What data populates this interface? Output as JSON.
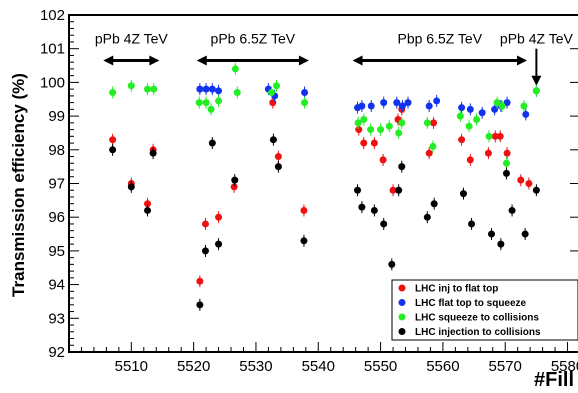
{
  "chart_data": {
    "type": "scatter",
    "xlabel": "#Fill",
    "ylabel": "Transmission efficiency (%)",
    "xlim": [
      5500,
      5582
    ],
    "ylim": [
      92,
      102
    ],
    "x_ticks": [
      5510,
      5520,
      5530,
      5540,
      5550,
      5560,
      5570,
      5580
    ],
    "y_ticks": [
      92,
      93,
      94,
      95,
      96,
      97,
      98,
      99,
      100,
      101,
      102
    ],
    "grid": false,
    "legend_position": "bottom-right",
    "period_annotations": [
      {
        "label": "pPb 4Z TeV",
        "x_start": 5505.5,
        "x_end": 5514.5
      },
      {
        "label": "pPb 6.5Z TeV",
        "x_start": 5520.5,
        "x_end": 5538.5
      },
      {
        "label": "Pbp 6.5Z TeV",
        "x_start": 5545.5,
        "x_end": 5573.5
      },
      {
        "label": "pPb 4Z TeV",
        "arrow_x": 5575,
        "arrow_y_from": 101.0,
        "arrow_y_to": 99.9
      }
    ],
    "series": [
      {
        "name": "LHC inj to flat top",
        "color": "#ee1111",
        "points": [
          [
            5507,
            98.3
          ],
          [
            5510,
            97.0
          ],
          [
            5512.6,
            96.4
          ],
          [
            5513.5,
            98.0
          ],
          [
            5521,
            94.1
          ],
          [
            5521.9,
            95.8
          ],
          [
            5524,
            96.0
          ],
          [
            5526.5,
            96.9
          ],
          [
            5532.7,
            99.4
          ],
          [
            5533.6,
            97.8
          ],
          [
            5537.7,
            96.2
          ],
          [
            5546.5,
            98.6
          ],
          [
            5547.3,
            98.2
          ],
          [
            5549,
            98.2
          ],
          [
            5550.4,
            97.7
          ],
          [
            5552,
            96.8
          ],
          [
            5552.8,
            98.9
          ],
          [
            5553.4,
            99.2
          ],
          [
            5557.8,
            97.9
          ],
          [
            5558.5,
            98.8
          ],
          [
            5563,
            98.3
          ],
          [
            5564.4,
            97.7
          ],
          [
            5567.3,
            97.9
          ],
          [
            5568.4,
            98.4
          ],
          [
            5569.2,
            98.4
          ],
          [
            5570.3,
            97.9
          ],
          [
            5572.5,
            97.1
          ],
          [
            5573.8,
            97.0
          ]
        ]
      },
      {
        "name": "LHC flat top to squeeze",
        "color": "#1133ee",
        "points": [
          [
            5521,
            99.8
          ],
          [
            5522,
            99.8
          ],
          [
            5523,
            99.8
          ],
          [
            5524,
            99.75
          ],
          [
            5532,
            99.8
          ],
          [
            5533,
            99.6
          ],
          [
            5537.8,
            99.7
          ],
          [
            5546.3,
            99.25
          ],
          [
            5547,
            99.3
          ],
          [
            5548.5,
            99.3
          ],
          [
            5550.5,
            99.4
          ],
          [
            5552.6,
            99.4
          ],
          [
            5553.5,
            99.3
          ],
          [
            5554.4,
            99.4
          ],
          [
            5557.8,
            99.3
          ],
          [
            5559,
            99.45
          ],
          [
            5563,
            99.25
          ],
          [
            5564.4,
            99.2
          ],
          [
            5566.3,
            99.1
          ],
          [
            5568.3,
            99.2
          ],
          [
            5569.3,
            99.3
          ],
          [
            5570.3,
            99.4
          ],
          [
            5573.3,
            99.05
          ],
          [
            5575,
            99.75
          ]
        ]
      },
      {
        "name": "LHC squeeze to collisions",
        "color": "#22ee22",
        "points": [
          [
            5507,
            99.7
          ],
          [
            5510,
            99.9
          ],
          [
            5512.6,
            99.8
          ],
          [
            5513.6,
            99.8
          ],
          [
            5520.9,
            99.4
          ],
          [
            5522,
            99.4
          ],
          [
            5522.8,
            99.2
          ],
          [
            5524,
            99.45
          ],
          [
            5526.7,
            100.4
          ],
          [
            5527,
            99.7
          ],
          [
            5532.5,
            99.7
          ],
          [
            5533.3,
            99.9
          ],
          [
            5537.8,
            99.4
          ],
          [
            5546.4,
            98.8
          ],
          [
            5547.3,
            98.9
          ],
          [
            5548.4,
            98.6
          ],
          [
            5550,
            98.6
          ],
          [
            5551.4,
            98.7
          ],
          [
            5552.9,
            98.5
          ],
          [
            5553.4,
            98.8
          ],
          [
            5557.5,
            98.8
          ],
          [
            5558.4,
            98.1
          ],
          [
            5562.8,
            99.0
          ],
          [
            5564.2,
            98.7
          ],
          [
            5565.4,
            98.9
          ],
          [
            5567.4,
            98.4
          ],
          [
            5568.7,
            99.4
          ],
          [
            5569.5,
            99.3
          ],
          [
            5570.2,
            97.6
          ],
          [
            5573,
            99.3
          ],
          [
            5575,
            99.75
          ]
        ]
      },
      {
        "name": "LHC injection to collisions",
        "color": "#000000",
        "points": [
          [
            5507,
            98.0
          ],
          [
            5510,
            96.9
          ],
          [
            5512.6,
            96.2
          ],
          [
            5513.5,
            97.9
          ],
          [
            5521,
            93.4
          ],
          [
            5521.9,
            95.0
          ],
          [
            5523,
            98.2
          ],
          [
            5524,
            95.2
          ],
          [
            5526.6,
            97.1
          ],
          [
            5532.8,
            98.3
          ],
          [
            5533.6,
            97.5
          ],
          [
            5537.7,
            95.3
          ],
          [
            5546.3,
            96.8
          ],
          [
            5547,
            96.3
          ],
          [
            5549,
            96.2
          ],
          [
            5550.5,
            95.8
          ],
          [
            5551.8,
            94.6
          ],
          [
            5552.9,
            96.8
          ],
          [
            5553.4,
            97.5
          ],
          [
            5557.5,
            96.0
          ],
          [
            5558.6,
            96.4
          ],
          [
            5563.3,
            96.7
          ],
          [
            5564.6,
            95.8
          ],
          [
            5567.8,
            95.5
          ],
          [
            5569.3,
            95.2
          ],
          [
            5570.2,
            97.3
          ],
          [
            5571.1,
            96.2
          ],
          [
            5573.2,
            95.5
          ],
          [
            5575,
            96.8
          ]
        ]
      }
    ]
  }
}
